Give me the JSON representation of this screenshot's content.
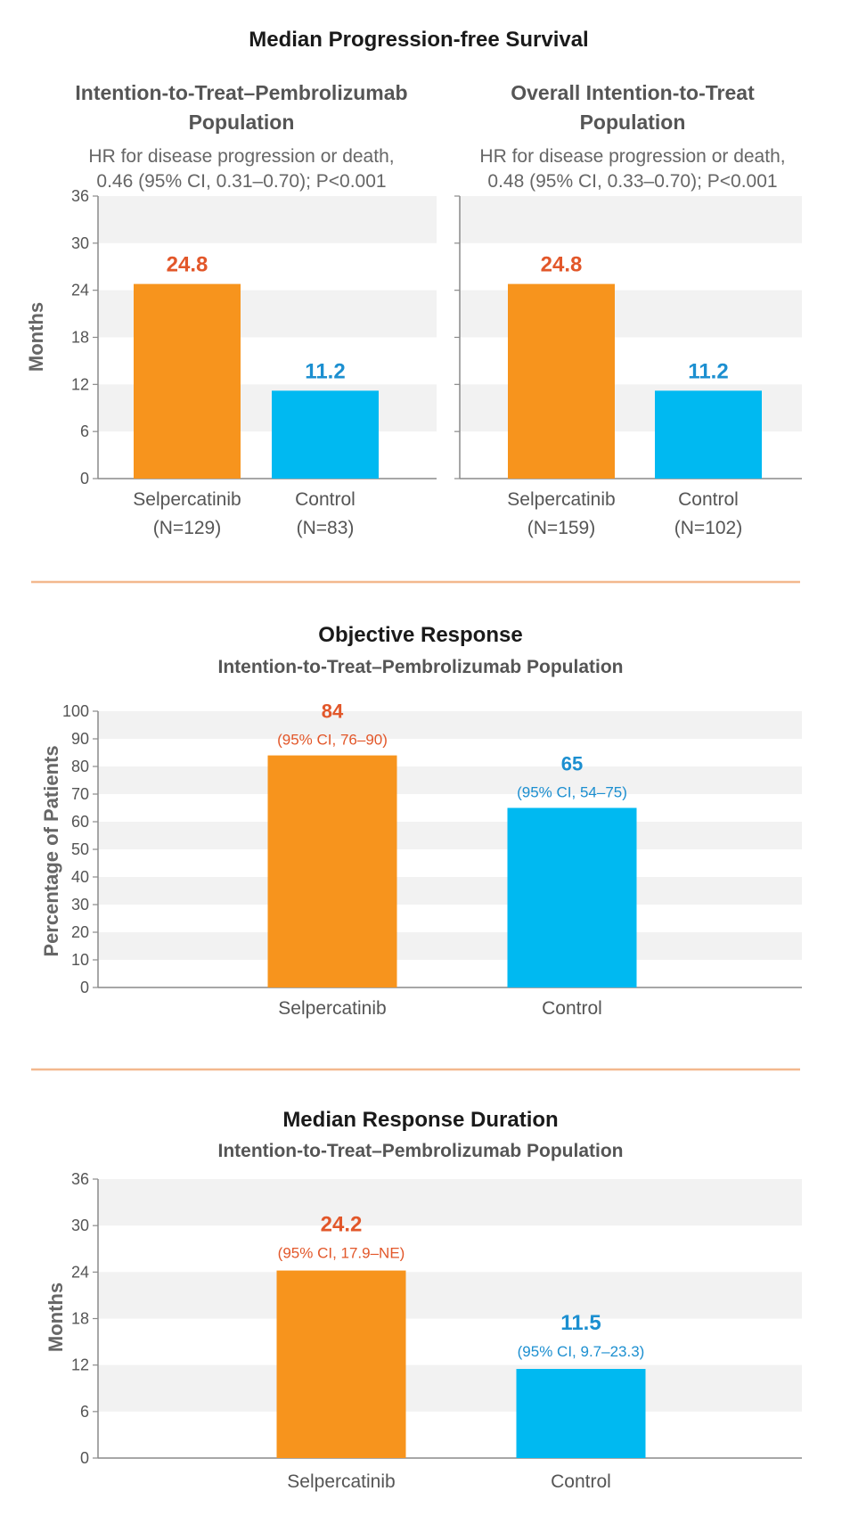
{
  "colors": {
    "orange": "#F7941D",
    "blue": "#00B9F1",
    "orange_text": "#E2572A",
    "blue_text": "#1C8FD0",
    "divider": "#F3B88E",
    "band": "#F2F2F2"
  },
  "figure": {
    "pfs_title": "Median Progression-free Survival",
    "or_title": "Objective Response",
    "or_subtitle": "Intention-to-Treat–Pembrolizumab Population",
    "dor_title": "Median Response Duration",
    "dor_subtitle": "Intention-to-Treat–Pembrolizumab Population"
  },
  "chart_data": [
    {
      "type": "bar",
      "title": "Intention-to-Treat–Pembrolizumab Population",
      "title_lines": [
        "Intention-to-Treat–Pembrolizumab",
        "Population"
      ],
      "hr_lines": [
        "HR for disease progression or death,",
        "0.46 (95% CI, 0.31–0.70); P<0.001"
      ],
      "ylabel": "Months",
      "ylim": [
        0,
        36
      ],
      "yticks": [
        0,
        6,
        12,
        18,
        24,
        30,
        36
      ],
      "categories": [
        "Selpercatinib",
        "Control"
      ],
      "n_labels": [
        "(N=129)",
        "(N=83)"
      ],
      "values": [
        24.8,
        11.2
      ],
      "value_labels": [
        "24.8",
        "11.2"
      ]
    },
    {
      "type": "bar",
      "title": "Overall Intention-to-Treat Population",
      "title_lines": [
        "Overall Intention-to-Treat",
        "Population"
      ],
      "hr_lines": [
        "HR for disease progression or death,",
        "0.48 (95% CI, 0.33–0.70); P<0.001"
      ],
      "ylabel": "",
      "ylim": [
        0,
        36
      ],
      "yticks": [
        0,
        6,
        12,
        18,
        24,
        30,
        36
      ],
      "categories": [
        "Selpercatinib",
        "Control"
      ],
      "n_labels": [
        "(N=159)",
        "(N=102)"
      ],
      "values": [
        24.8,
        11.2
      ],
      "value_labels": [
        "24.8",
        "11.2"
      ]
    },
    {
      "type": "bar",
      "title": "Objective Response",
      "ylabel": "Percentage of Patients",
      "ylim": [
        0,
        100
      ],
      "yticks": [
        0,
        10,
        20,
        30,
        40,
        50,
        60,
        70,
        80,
        90,
        100
      ],
      "categories": [
        "Selpercatinib",
        "Control"
      ],
      "values": [
        84,
        65
      ],
      "value_labels": [
        "84",
        "65"
      ],
      "ci_labels": [
        "(95% CI, 76–90)",
        "(95% CI, 54–75)"
      ]
    },
    {
      "type": "bar",
      "title": "Median Response Duration",
      "ylabel": "Months",
      "ylim": [
        0,
        36
      ],
      "yticks": [
        0,
        6,
        12,
        18,
        24,
        30,
        36
      ],
      "categories": [
        "Selpercatinib",
        "Control"
      ],
      "values": [
        24.2,
        11.5
      ],
      "value_labels": [
        "24.2",
        "11.5"
      ],
      "ci_labels": [
        "(95% CI, 17.9–NE)",
        "(95% CI, 9.7–23.3)"
      ]
    }
  ]
}
